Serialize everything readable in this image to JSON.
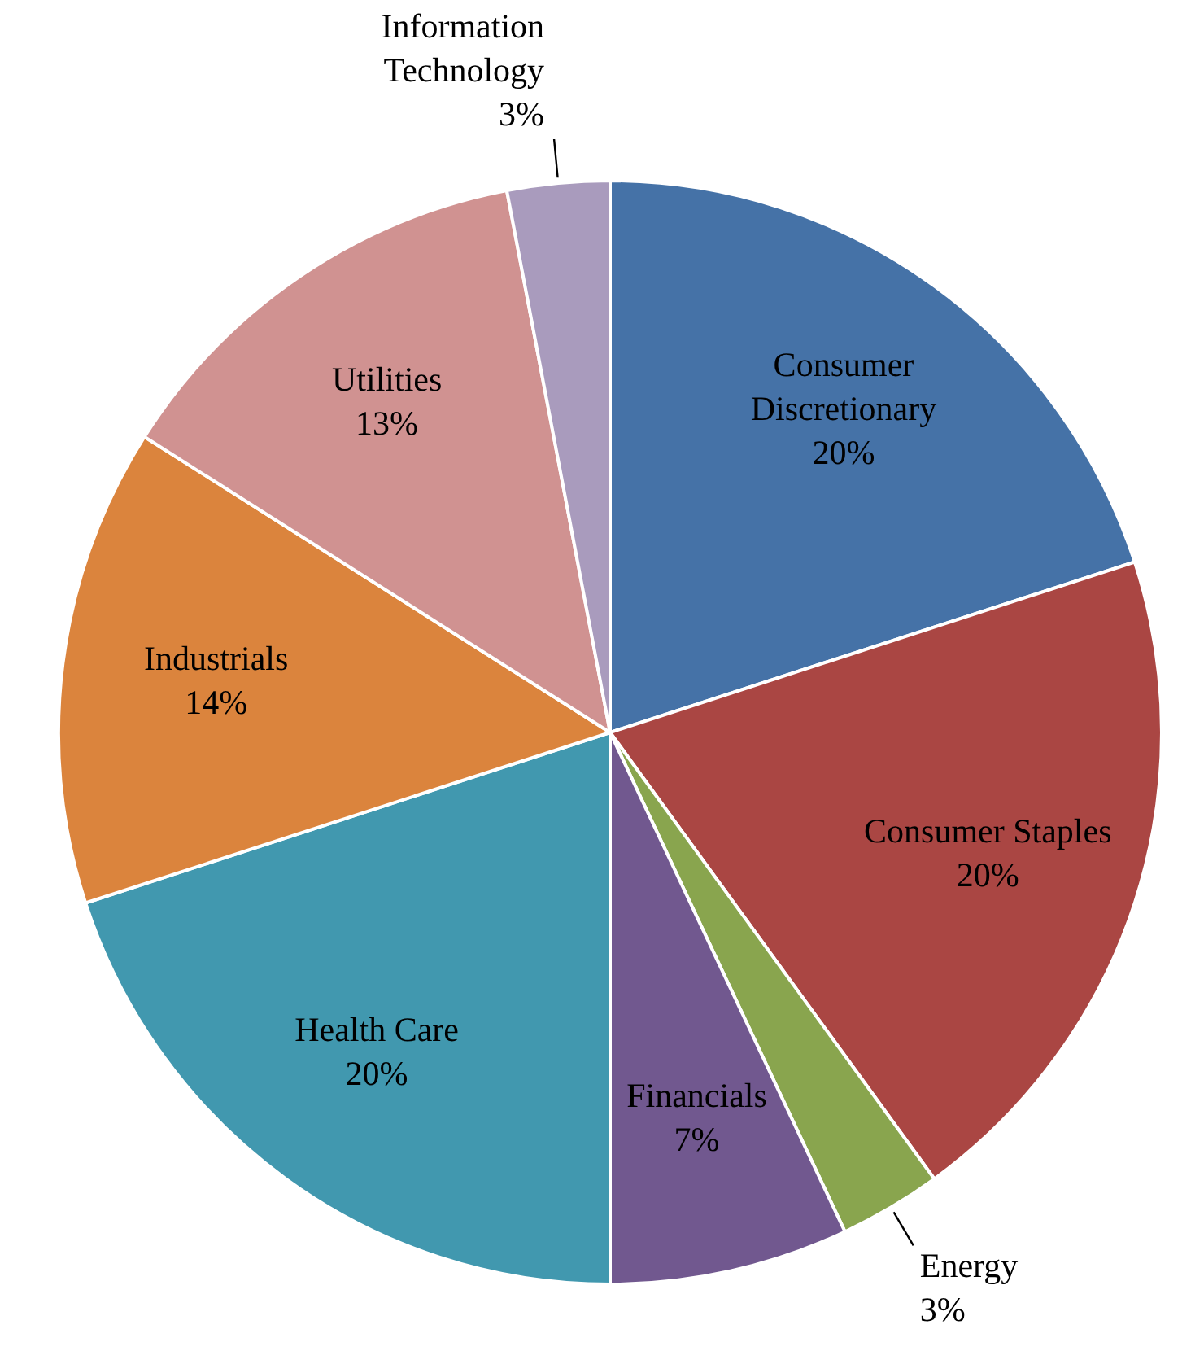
{
  "chart_data": {
    "type": "pie",
    "categories": [
      "Consumer Discretionary",
      "Consumer Staples",
      "Energy",
      "Financials",
      "Health Care",
      "Industrials",
      "Utilities",
      "Information Technology"
    ],
    "values": [
      20,
      20,
      3,
      7,
      20,
      14,
      13,
      3
    ],
    "colors": [
      "#4572a7",
      "#aa4643",
      "#89a54e",
      "#71588f",
      "#4198af",
      "#db843d",
      "#d09291",
      "#a99bbd"
    ],
    "value_labels": [
      "20%",
      "20%",
      "3%",
      "7%",
      "20%",
      "14%",
      "13%",
      "3%"
    ],
    "legend": false
  }
}
